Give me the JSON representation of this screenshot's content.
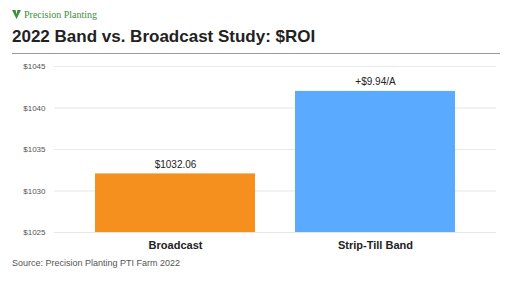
{
  "chart_data": {
    "type": "bar",
    "brand": "Precision Planting",
    "title": "2022 Band vs. Broadcast Study: $ROI",
    "source": "Source: Precision Planting PTI Farm 2022",
    "categories": [
      "Broadcast",
      "Strip-Till Band"
    ],
    "values": [
      1032.06,
      1042.0
    ],
    "value_labels": [
      "$1032.06",
      null
    ],
    "data_labels": true,
    "colors": [
      "#f5901e",
      "#5aabff"
    ],
    "annotations": [
      {
        "text": "+$9.94/A",
        "category": "Strip-Till Band"
      }
    ],
    "ylim": [
      1025,
      1045
    ],
    "yticks": [
      {
        "value": 1025,
        "label": "$1025"
      },
      {
        "value": 1030,
        "label": "$1030"
      },
      {
        "value": 1035,
        "label": "$1035"
      },
      {
        "value": 1040,
        "label": "$1040"
      },
      {
        "value": 1045,
        "label": "$1045"
      }
    ],
    "grid": true
  }
}
